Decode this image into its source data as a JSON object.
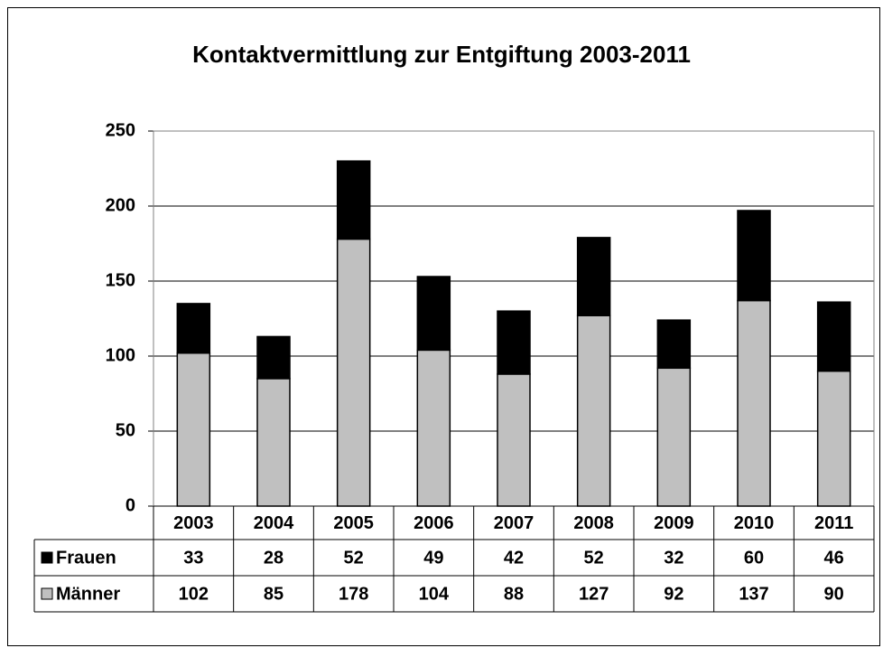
{
  "chart_data": {
    "type": "stacked-bar",
    "title": "Kontaktvermittlung zur Entgiftung 2003-2011",
    "categories": [
      "2003",
      "2004",
      "2005",
      "2006",
      "2007",
      "2008",
      "2009",
      "2010",
      "2011"
    ],
    "series": [
      {
        "name": "Frauen",
        "color": "#000000",
        "values": [
          33,
          28,
          52,
          49,
          42,
          52,
          32,
          60,
          46
        ]
      },
      {
        "name": "Männer",
        "color": "#c0c0c0",
        "values": [
          102,
          85,
          178,
          104,
          88,
          127,
          92,
          137,
          90
        ]
      }
    ],
    "ylim": [
      0,
      250
    ],
    "yticks": [
      0,
      50,
      100,
      150,
      200,
      250
    ],
    "grid": true,
    "data_table": true
  }
}
